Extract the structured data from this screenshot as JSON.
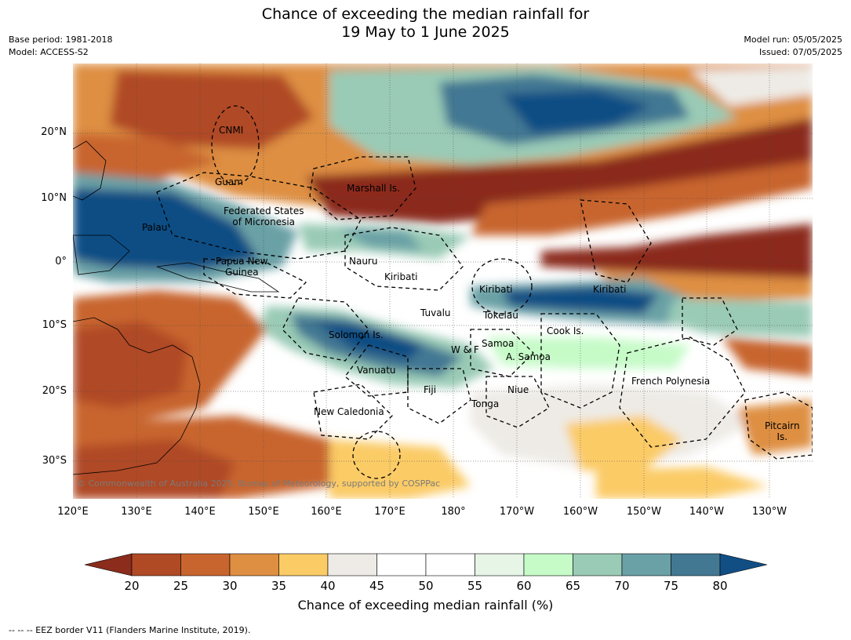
{
  "title": {
    "line1": "Chance of exceeding the median rainfall for",
    "line2": "19 May to 1 June 2025"
  },
  "meta_left": {
    "base_period": "Base period: 1981-2018",
    "model": "Model: ACCESS-S2"
  },
  "meta_right": {
    "model_run": "Model run: 05/05/2025",
    "issued": "Issued: 07/05/2025"
  },
  "latitudes": [
    "20°N",
    "10°N",
    "0°",
    "10°S",
    "20°S",
    "30°S"
  ],
  "longitudes": [
    "120°E",
    "130°E",
    "140°E",
    "150°E",
    "160°E",
    "170°E",
    "180°",
    "170°W",
    "160°W",
    "150°W",
    "140°W",
    "130°W"
  ],
  "places": {
    "cnmi": "CNMI",
    "guam": "Guam",
    "marshall": "Marshall Is.",
    "fsm_1": "Federated States",
    "fsm_2": "of Micronesia",
    "palau": "Palau",
    "png_1": "Papua New",
    "png_2": "Guinea",
    "nauru": "Nauru",
    "kiribati_w": "Kiribati",
    "kiribati_c": "Kiribati",
    "kiribati_e": "Kiribati",
    "tuvalu": "Tuvalu",
    "tokelau": "Tokelau",
    "cook": "Cook Is.",
    "solomon": "Solomon Is.",
    "wf": "W & F",
    "samoa": "Samoa",
    "asamoa": "A. Samoa",
    "vanuatu": "Vanuatu",
    "fiji": "Fiji",
    "niue": "Niue",
    "tonga": "Tonga",
    "frpoly": "French Polynesia",
    "newcal": "New Caledonia",
    "pitcairn_1": "Pitcairn",
    "pitcairn_2": "Is."
  },
  "copyright": "© Commonwealth of Australia 2025, Bureau of Meteorology, supported by COSPPac",
  "colorbar": {
    "title": "Chance of exceeding median rainfall (%)",
    "ticks": [
      "20",
      "25",
      "30",
      "35",
      "40",
      "45",
      "50",
      "55",
      "60",
      "65",
      "70",
      "75",
      "80"
    ],
    "colors": [
      "#8b2c1c",
      "#b04a25",
      "#c8652e",
      "#de8f42",
      "#fbcb66",
      "#eeebe6",
      "#ffffff",
      "#ffffff",
      "#e6f5e6",
      "#c6fbc8",
      "#9acbb6",
      "#6aa1a6",
      "#437893",
      "#114e84"
    ]
  },
  "footnote": "--  --  -- EEZ border V11 (Flanders Marine Institute, 2019)."
}
